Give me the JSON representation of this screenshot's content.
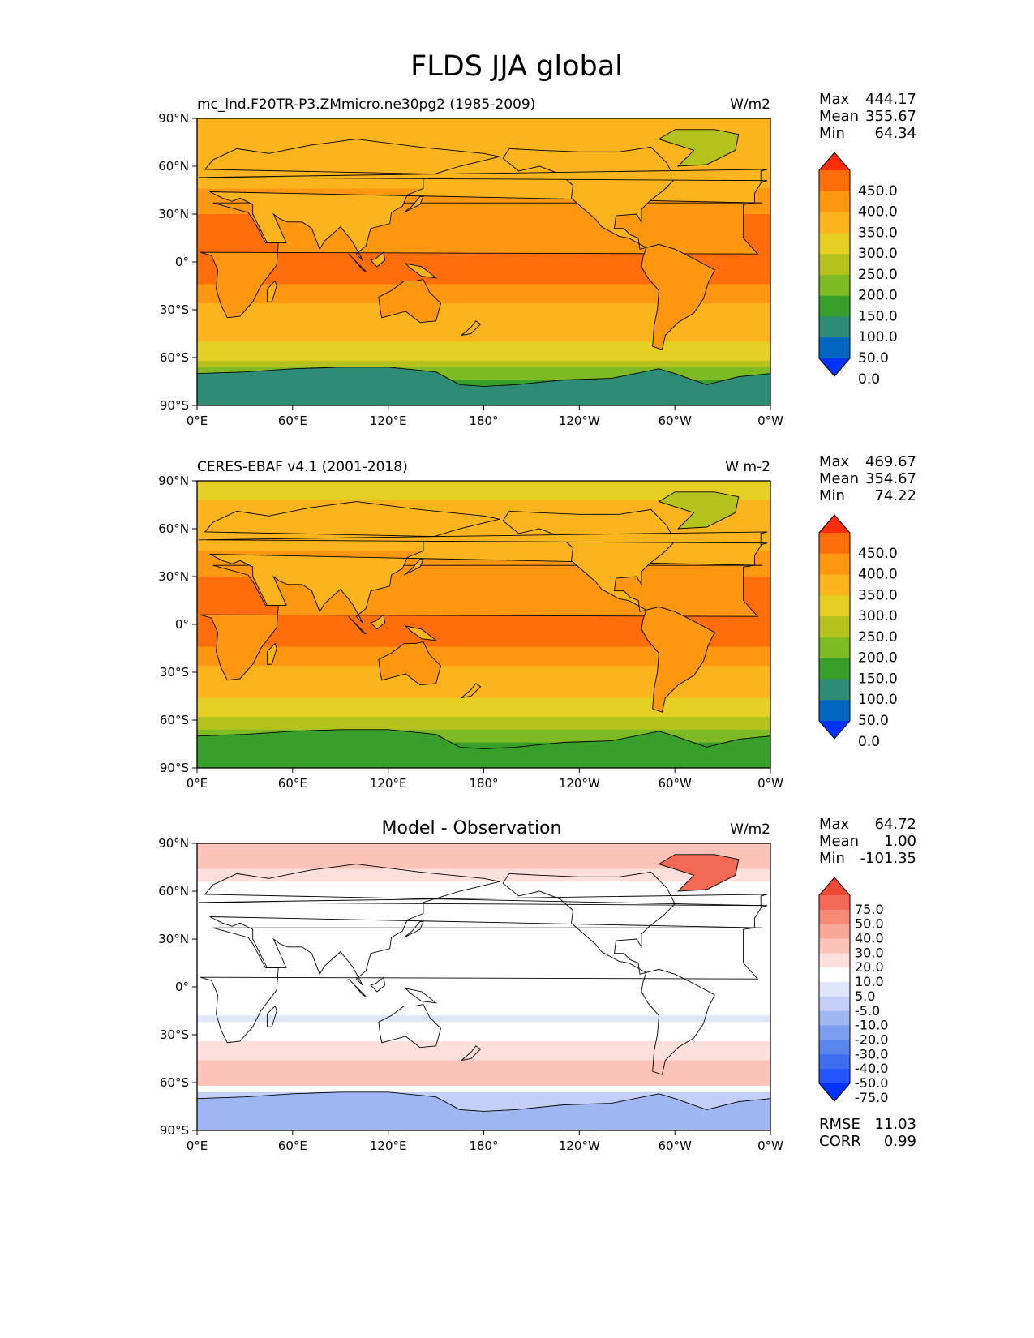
{
  "figure_title": "FLDS JJA global",
  "colors": {
    "seq": [
      "#0033ff",
      "#0066c0",
      "#2e8b74",
      "#38a02a",
      "#7dba23",
      "#b4c21d",
      "#e5cf22",
      "#fbb41e",
      "#ff9810",
      "#ff6e0a",
      "#ff2d0a"
    ],
    "diff": [
      "#0033ff",
      "#2255ff",
      "#3f6df0",
      "#5a85eb",
      "#7a9ded",
      "#9fb6f2",
      "#c3cff6",
      "#e0e6fa",
      "#ffffff",
      "#fde0dc",
      "#fcc3b9",
      "#faa797",
      "#f68a77",
      "#f26a56",
      "#ed4a36",
      "#ff2d0a"
    ],
    "ocean_seq_band": "#ff6e0a",
    "land_outline": "#000000"
  },
  "chart_data": [
    {
      "type": "heatmap",
      "panel_title": "mc_lnd.F20TR-P3.ZMmicro.ne30pg2 (1985-2009)",
      "title_position": "left",
      "units": "W/m2",
      "stats": [
        {
          "label": "Max",
          "value": "444.17"
        },
        {
          "label": "Mean",
          "value": "355.67"
        },
        {
          "label": "Min",
          "value": "64.34"
        }
      ],
      "colorbar": {
        "levels": [
          "450.0",
          "400.0",
          "350.0",
          "300.0",
          "250.0",
          "200.0",
          "150.0",
          "100.0",
          "50.0",
          "0.0"
        ],
        "extend": "both"
      },
      "xticks": [
        "0°E",
        "60°E",
        "120°E",
        "180°",
        "120°W",
        "60°W",
        "0°W"
      ],
      "yticks": [
        "90°N",
        "60°N",
        "30°N",
        "0°",
        "30°S",
        "60°S",
        "90°S"
      ],
      "lat_range": [
        -90,
        90
      ],
      "lon_range": [
        0,
        360
      ],
      "zonal_profile": {
        "lat": [
          90,
          80,
          70,
          60,
          50,
          40,
          30,
          20,
          10,
          0,
          -10,
          -20,
          -30,
          -40,
          -50,
          -60,
          -70,
          -80,
          -90
        ],
        "value": [
          310,
          320,
          325,
          320,
          345,
          370,
          400,
          420,
          430,
          425,
          410,
          380,
          340,
          320,
          300,
          260,
          180,
          120,
          100
        ]
      }
    },
    {
      "type": "heatmap",
      "panel_title": "CERES-EBAF v4.1 (2001-2018)",
      "title_position": "left",
      "units": "W m-2",
      "stats": [
        {
          "label": "Max",
          "value": "469.67"
        },
        {
          "label": "Mean",
          "value": "354.67"
        },
        {
          "label": "Min",
          "value": "74.22"
        }
      ],
      "colorbar": {
        "levels": [
          "450.0",
          "400.0",
          "350.0",
          "300.0",
          "250.0",
          "200.0",
          "150.0",
          "100.0",
          "50.0",
          "0.0"
        ],
        "extend": "both"
      },
      "xticks": [
        "0°E",
        "60°E",
        "120°E",
        "180°",
        "120°W",
        "60°W",
        "0°W"
      ],
      "yticks": [
        "90°N",
        "60°N",
        "30°N",
        "0°",
        "30°S",
        "60°S",
        "90°S"
      ],
      "lat_range": [
        -90,
        90
      ],
      "lon_range": [
        0,
        360
      ],
      "zonal_profile": {
        "lat": [
          90,
          80,
          70,
          60,
          50,
          40,
          30,
          20,
          10,
          0,
          -10,
          -20,
          -30,
          -40,
          -50,
          -60,
          -70,
          -80,
          -90
        ],
        "value": [
          290,
          300,
          310,
          325,
          345,
          370,
          400,
          420,
          430,
          425,
          410,
          380,
          340,
          315,
          290,
          250,
          160,
          130,
          110
        ]
      }
    },
    {
      "type": "heatmap",
      "panel_title": "Model - Observation",
      "title_position": "center",
      "units": "W/m2",
      "stats": [
        {
          "label": "Max",
          "value": "64.72"
        },
        {
          "label": "Mean",
          "value": "1.00"
        },
        {
          "label": "Min",
          "value": "-101.35"
        }
      ],
      "colorbar": {
        "levels": [
          "75.0",
          "50.0",
          "40.0",
          "30.0",
          "20.0",
          "10.0",
          "5.0",
          "-5.0",
          "-10.0",
          "-20.0",
          "-30.0",
          "-40.0",
          "-50.0",
          "-75.0"
        ],
        "extend": "both"
      },
      "metrics": [
        {
          "label": "RMSE",
          "value": "11.03"
        },
        {
          "label": "CORR",
          "value": "0.99"
        }
      ],
      "xticks": [
        "0°E",
        "60°E",
        "120°E",
        "180°",
        "120°W",
        "60°W",
        "0°W"
      ],
      "yticks": [
        "90°N",
        "60°N",
        "30°N",
        "0°",
        "30°S",
        "60°S",
        "90°S"
      ],
      "lat_range": [
        -90,
        90
      ],
      "lon_range": [
        0,
        360
      ],
      "zonal_profile": {
        "lat": [
          90,
          80,
          70,
          60,
          50,
          40,
          30,
          20,
          10,
          0,
          -10,
          -20,
          -30,
          -40,
          -50,
          -60,
          -70,
          -80,
          -90
        ],
        "value": [
          20,
          15,
          8,
          2,
          0,
          1,
          3,
          2,
          0,
          0,
          -3,
          -6,
          2,
          8,
          12,
          15,
          -20,
          -12,
          -10
        ]
      }
    }
  ]
}
